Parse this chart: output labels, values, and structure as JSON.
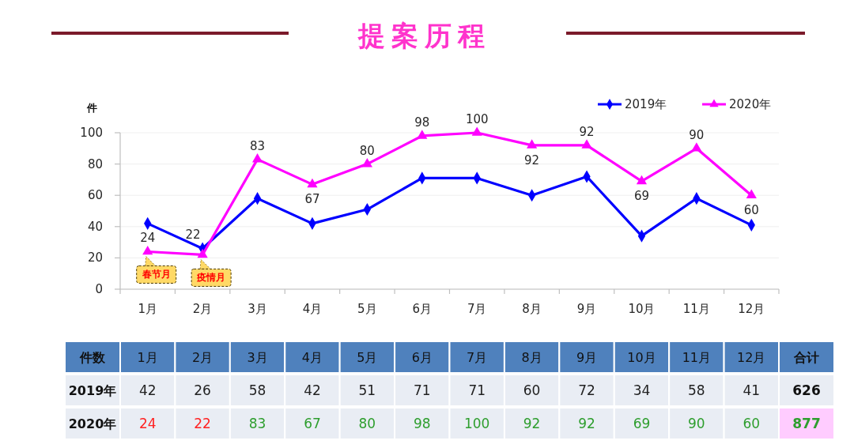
{
  "chart_data": {
    "type": "line",
    "title": "提案历程",
    "ylabel": "件",
    "categories": [
      "1月",
      "2月",
      "3月",
      "4月",
      "5月",
      "6月",
      "7月",
      "8月",
      "9月",
      "10月",
      "11月",
      "12月"
    ],
    "series": [
      {
        "name": "2019年",
        "color": "#0000ff",
        "marker": "diamond",
        "values": [
          42,
          26,
          58,
          42,
          51,
          71,
          71,
          60,
          72,
          34,
          58,
          41
        ]
      },
      {
        "name": "2020年",
        "color": "#ff00ff",
        "marker": "triangle",
        "values": [
          24,
          22,
          83,
          67,
          80,
          98,
          100,
          92,
          92,
          69,
          90,
          60
        ],
        "value_labels": [
          "24",
          "22",
          "83",
          "67",
          "80",
          "98",
          "100",
          "92",
          "92",
          "69",
          "90",
          "60"
        ]
      }
    ],
    "ylim": [
      0,
      100
    ],
    "yticks": [
      0,
      20,
      40,
      60,
      80,
      100
    ],
    "grid": "y",
    "legend": "top right",
    "data_labels": true,
    "annotations": [
      {
        "text": "春节月",
        "x": "1月",
        "y": 24
      },
      {
        "text": "疫情月",
        "x": "2月",
        "y": 22
      },
      "件数",
      "合计",
      "626",
      "877"
    ]
  }
}
